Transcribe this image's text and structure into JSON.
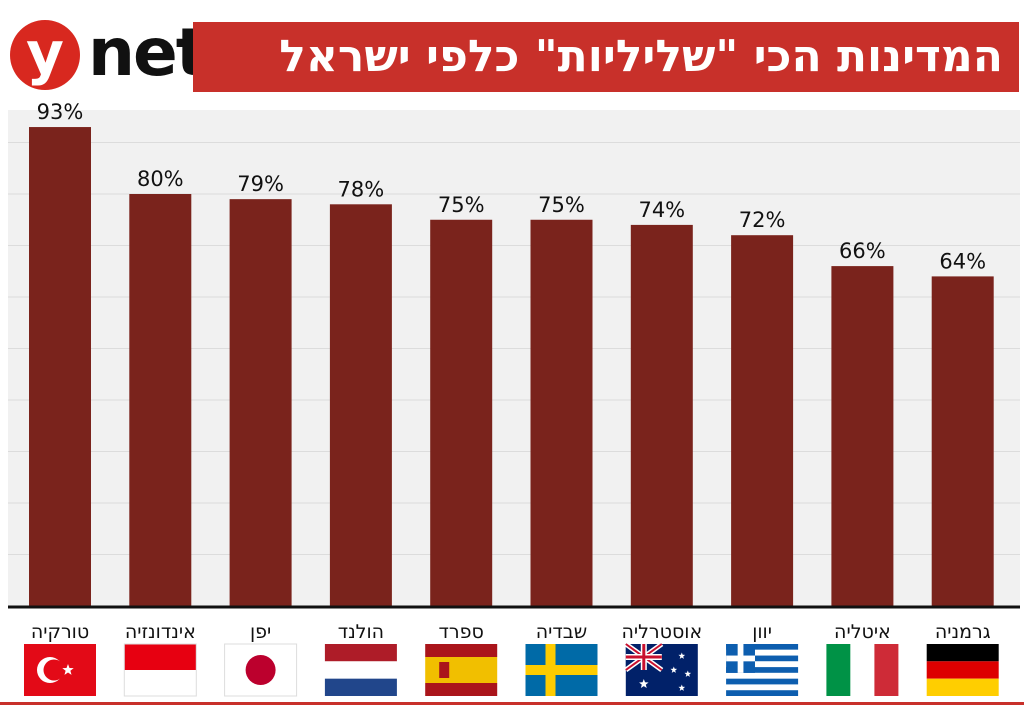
{
  "logo": {
    "mark": "y",
    "text": "net"
  },
  "title": "המדינות הכי \"שליליות\" כלפי ישראל",
  "colors": {
    "bar": "#7a231c",
    "title_bg": "#c8302a",
    "logo_red": "#d8281f",
    "plot_bg": "#f1f1f1",
    "grid": "#dcdcdc",
    "baseline": "#111111"
  },
  "chart_data": {
    "type": "bar",
    "title": "המדינות הכי \"שליליות\" כלפי ישראל",
    "xlabel": "",
    "ylabel": "",
    "ylim": [
      0,
      100
    ],
    "grid": true,
    "value_suffix": "%",
    "categories": [
      "טורקיה",
      "אינדונזיה",
      "יפן",
      "הולנד",
      "ספרד",
      "שבדיה",
      "אוסטרליה",
      "יוון",
      "איטליה",
      "גרמניה"
    ],
    "values": [
      93,
      80,
      79,
      78,
      75,
      75,
      74,
      72,
      66,
      64
    ],
    "labels": [
      "93%",
      "80%",
      "79%",
      "78%",
      "75%",
      "75%",
      "74%",
      "72%",
      "66%",
      "64%"
    ],
    "flags": [
      "turkey-flag-icon",
      "indonesia-flag-icon",
      "japan-flag-icon",
      "netherlands-flag-icon",
      "spain-flag-icon",
      "sweden-flag-icon",
      "australia-flag-icon",
      "greece-flag-icon",
      "italy-flag-icon",
      "germany-flag-icon"
    ]
  }
}
